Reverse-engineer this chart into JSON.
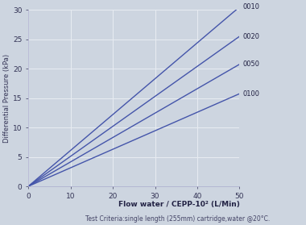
{
  "xlabel": "Flow water / CEPP-10² (L/Min)",
  "ylabel": "Differential Pressure (kPa)",
  "subtitle": "Test Criteria:single length (255mm) cartridge,water @20°C.",
  "xlim": [
    0,
    50
  ],
  "ylim": [
    0,
    30
  ],
  "xticks": [
    0,
    10,
    20,
    30,
    40,
    50
  ],
  "yticks": [
    0,
    5,
    10,
    15,
    20,
    25,
    30
  ],
  "background_color": "#cdd5e0",
  "plot_bg_color": "#cdd5e0",
  "line_color": "#4455aa",
  "grid_color": "#e8ecf2",
  "lines": [
    {
      "label": "0010",
      "slope": 0.61
    },
    {
      "label": "0020",
      "slope": 0.51
    },
    {
      "label": "0050",
      "slope": 0.415
    },
    {
      "label": "0100",
      "slope": 0.315
    }
  ]
}
